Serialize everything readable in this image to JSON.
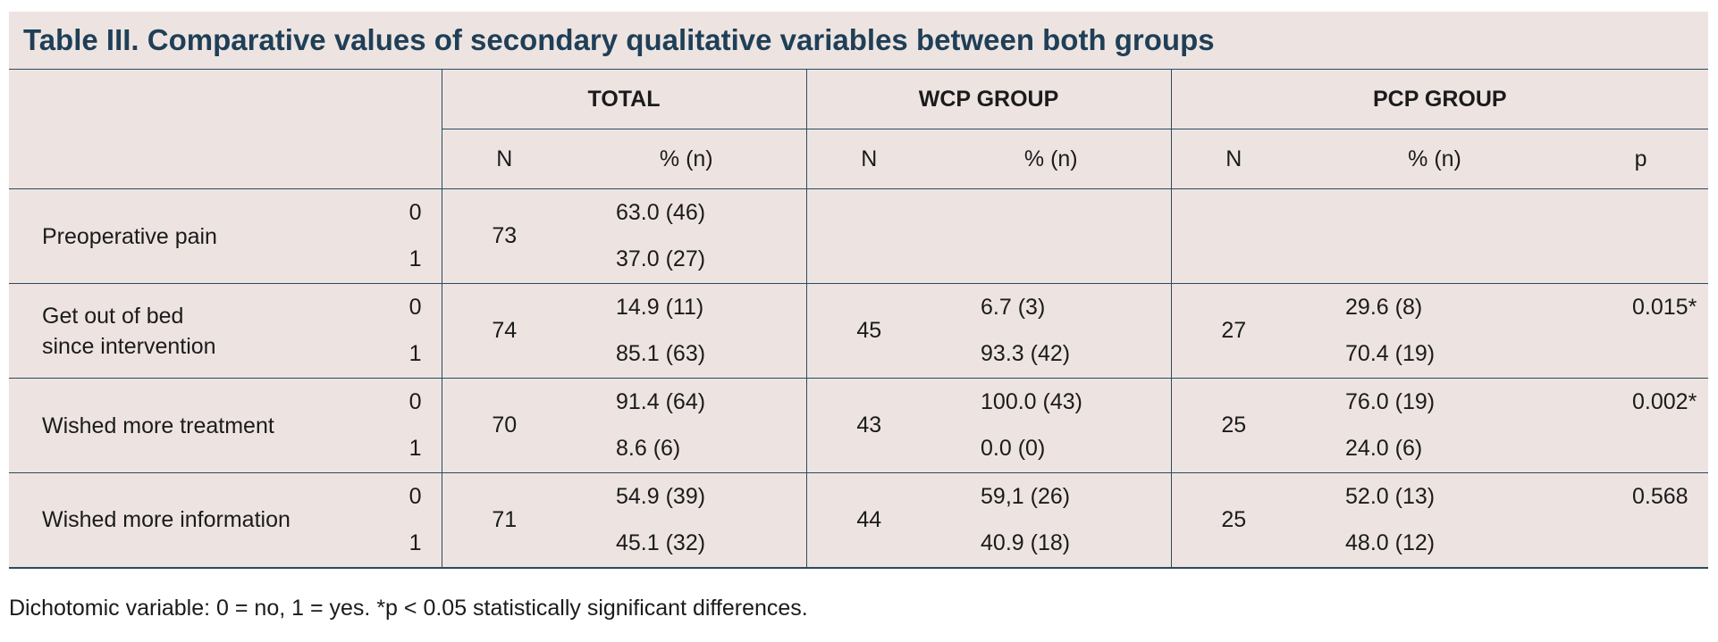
{
  "title": "Table III. Comparative values of secondary qualitative variables between both groups",
  "groups": [
    "TOTAL",
    "WCP GROUP",
    "PCP GROUP"
  ],
  "subheaders": {
    "n": "N",
    "pct": "% (n)",
    "p": "p"
  },
  "rows": [
    {
      "label": "Preoperative pain",
      "codes": [
        "0",
        "1"
      ],
      "total_n": "73",
      "total_pct": [
        "63.0 (46)",
        "37.0 (27)"
      ],
      "wcp_n": "",
      "wcp_pct": [
        "",
        ""
      ],
      "pcp_n": "",
      "pcp_pct": [
        "",
        ""
      ],
      "p": ""
    },
    {
      "label_lines": [
        "Get out of bed",
        "since intervention"
      ],
      "codes": [
        "0",
        "1"
      ],
      "total_n": "74",
      "total_pct": [
        "14.9 (11)",
        "85.1 (63)"
      ],
      "wcp_n": "45",
      "wcp_pct": [
        "6.7 (3)",
        "93.3 (42)"
      ],
      "pcp_n": "27",
      "pcp_pct": [
        "29.6 (8)",
        "70.4 (19)"
      ],
      "p": "0.015*"
    },
    {
      "label": "Wished more treatment",
      "codes": [
        "0",
        "1"
      ],
      "total_n": "70",
      "total_pct": [
        "91.4 (64)",
        "8.6 (6)"
      ],
      "wcp_n": "43",
      "wcp_pct": [
        "100.0 (43)",
        "0.0 (0)"
      ],
      "pcp_n": "25",
      "pcp_pct": [
        "76.0 (19)",
        "24.0 (6)"
      ],
      "p": "0.002*"
    },
    {
      "label": "Wished more information",
      "codes": [
        "0",
        "1"
      ],
      "total_n": "71",
      "total_pct": [
        "54.9 (39)",
        "45.1 (32)"
      ],
      "wcp_n": "44",
      "wcp_pct": [
        "59,1 (26)",
        "40.9 (18)"
      ],
      "pcp_n": "25",
      "pcp_pct": [
        "52.0 (13)",
        "48.0 (12)"
      ],
      "p": "0.568"
    }
  ],
  "footnote": "Dichotomic variable: 0 = no, 1 = yes. *p < 0.05 statistically significant differences."
}
